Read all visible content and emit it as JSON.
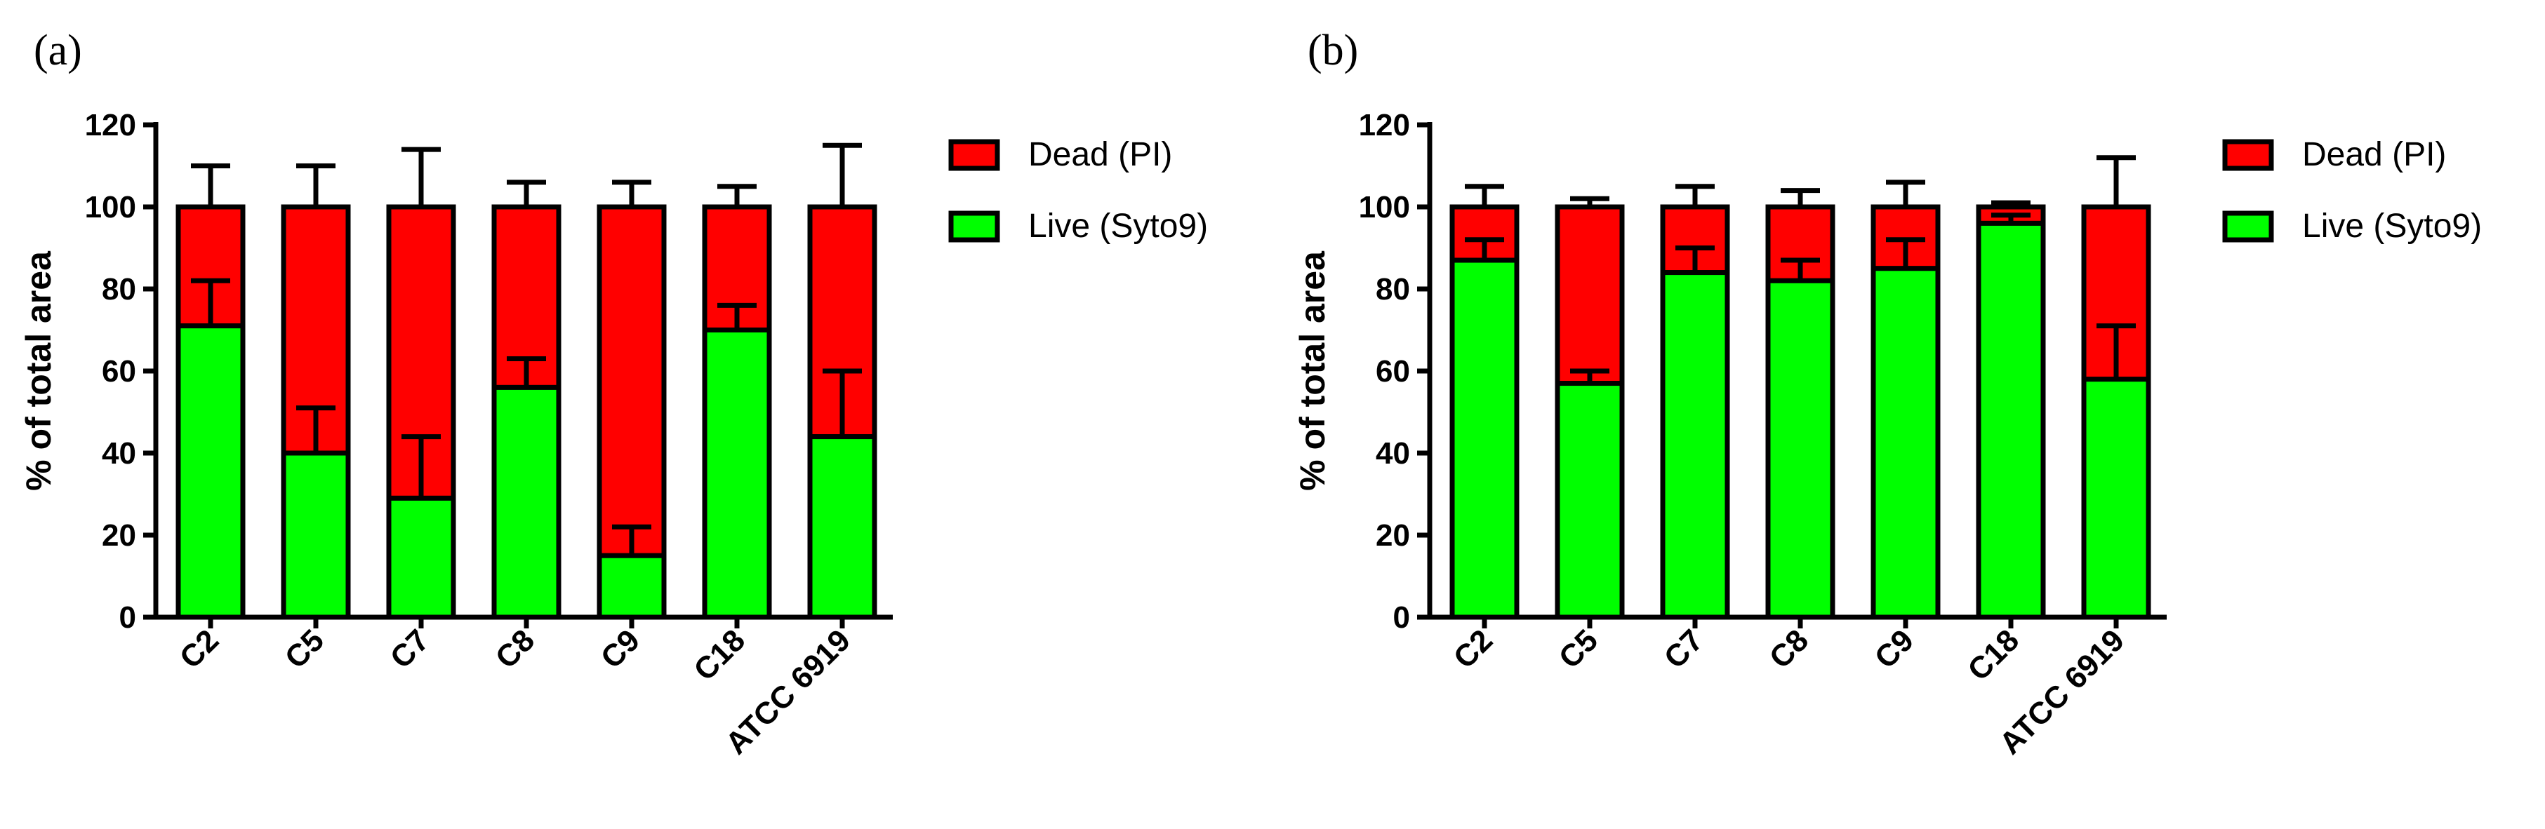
{
  "chart_data": [
    {
      "type": "bar",
      "stacked": true,
      "panel_label": "(a)",
      "title": "",
      "xlabel": "",
      "ylabel": "% of total area",
      "ylim": [
        0,
        120
      ],
      "yticks": [
        "0",
        "20",
        "40",
        "60",
        "80",
        "100",
        "120"
      ],
      "categories": [
        "C2",
        "C5",
        "C7",
        "C8",
        "C9",
        "C18",
        "ATCC 6919"
      ],
      "series": [
        {
          "name": "Live (Syto9)",
          "color": "#00ff00",
          "values": [
            71,
            40,
            29,
            56,
            15,
            70,
            44
          ],
          "error_top": [
            82,
            51,
            44,
            63,
            22,
            76,
            60
          ]
        },
        {
          "name": "Dead (PI)",
          "color": "#ff0000",
          "values": [
            29,
            60,
            71,
            44,
            85,
            30,
            56
          ],
          "error_top": [
            110,
            110,
            114,
            106,
            106,
            105,
            115
          ]
        }
      ],
      "legend": [
        "Dead (PI)",
        "Live (Syto9)"
      ],
      "legend_position": "right"
    },
    {
      "type": "bar",
      "stacked": true,
      "panel_label": "(b)",
      "title": "",
      "xlabel": "",
      "ylabel": "% of total area",
      "ylim": [
        0,
        120
      ],
      "yticks": [
        "0",
        "20",
        "40",
        "60",
        "80",
        "100",
        "120"
      ],
      "categories": [
        "C2",
        "C5",
        "C7",
        "C8",
        "C9",
        "C18",
        "ATCC 6919"
      ],
      "series": [
        {
          "name": "Live (Syto9)",
          "color": "#00ff00",
          "values": [
            87,
            57,
            84,
            82,
            85,
            96,
            58
          ],
          "error_top": [
            92,
            60,
            90,
            87,
            92,
            98,
            71
          ]
        },
        {
          "name": "Dead (PI)",
          "color": "#ff0000",
          "values": [
            13,
            43,
            16,
            18,
            15,
            4,
            42
          ],
          "error_top": [
            105,
            102,
            105,
            104,
            106,
            101,
            112
          ]
        }
      ],
      "legend": [
        "Dead (PI)",
        "Live (Syto9)"
      ],
      "legend_position": "right"
    }
  ]
}
